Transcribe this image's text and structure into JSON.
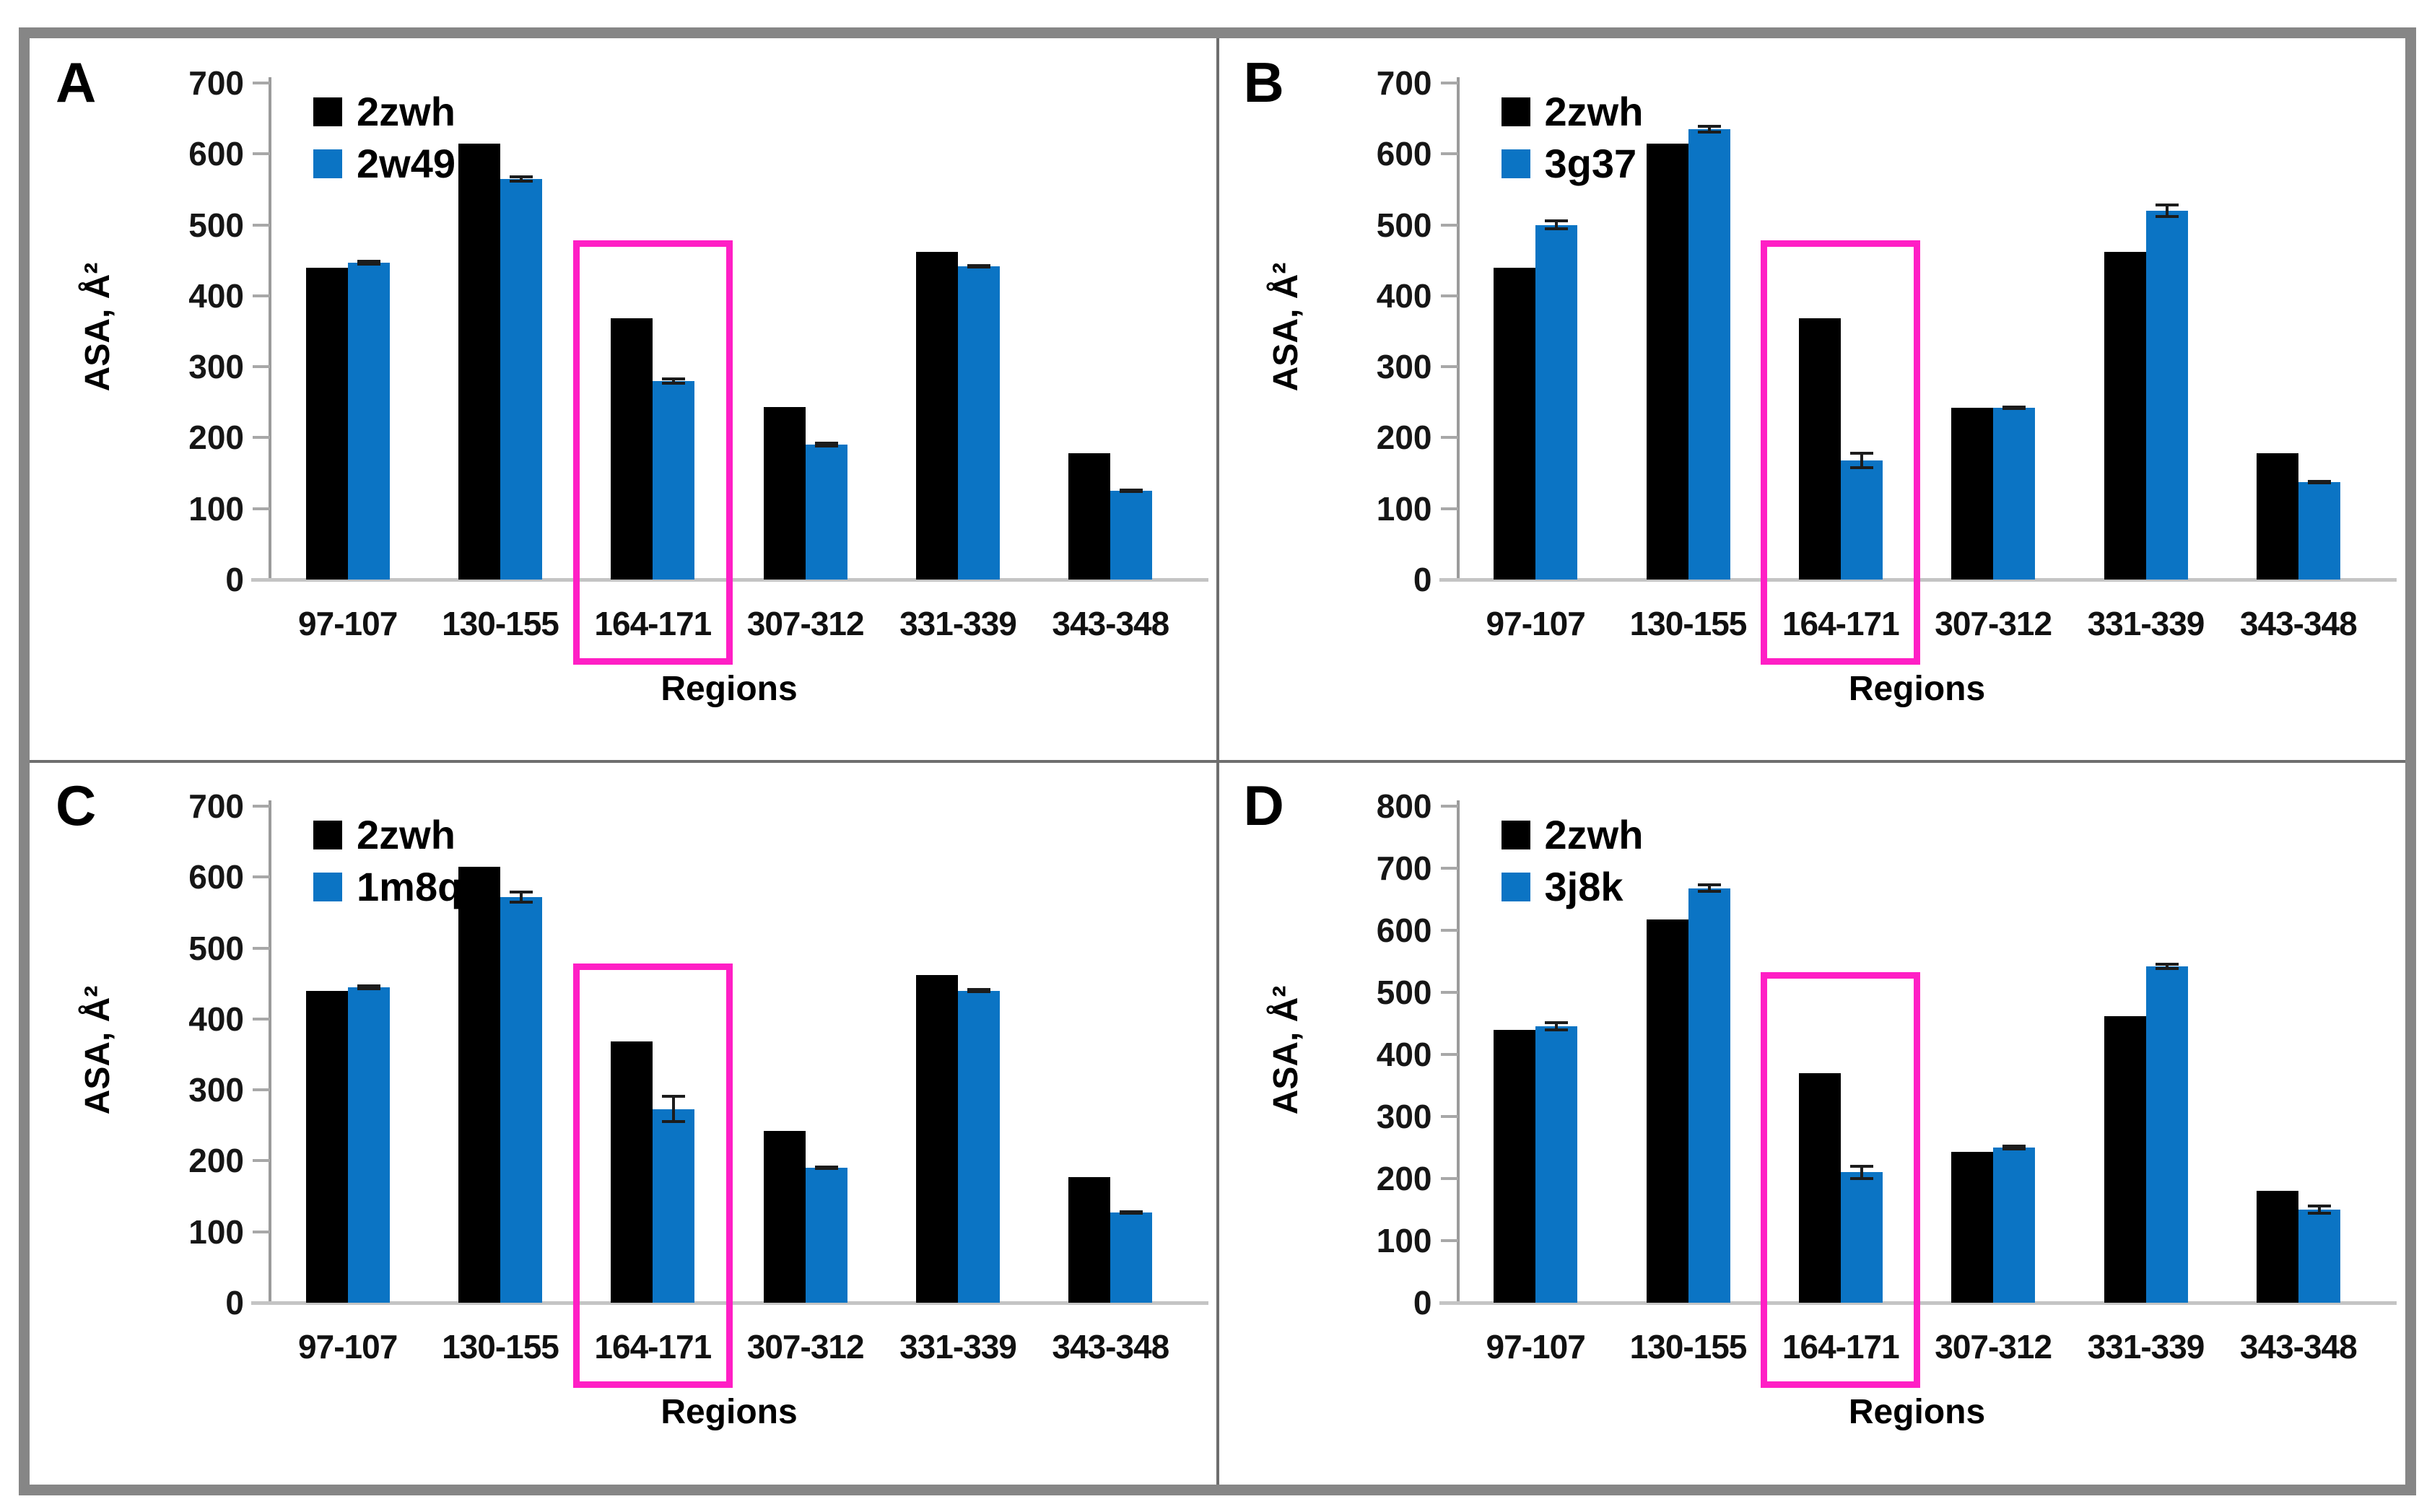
{
  "figure": {
    "frame_color": "#868686",
    "divider_color": "#6e6e6e",
    "background": "#ffffff"
  },
  "colors": {
    "series_black": "#000000",
    "series_blue": "#0b74c4",
    "highlight_pink": "#ff1fc5",
    "axis_gray": "#9b9b9b",
    "baseline_gray": "#c4c4c4",
    "error_bar": "#1c1c1c"
  },
  "chart_data": [
    {
      "type": "bar",
      "panel_letter": "A",
      "title": "",
      "xlabel": "Regions",
      "ylabel": "ASA, Å²",
      "ylim": [
        0,
        700
      ],
      "ytick_step": 100,
      "ytick_labels": [
        "0",
        "100",
        "200",
        "300",
        "400",
        "500",
        "600",
        "700"
      ],
      "grid": false,
      "legend_position": "top-left",
      "categories": [
        "97-107",
        "130-155",
        "164-171",
        "307-312",
        "331-339",
        "343-348"
      ],
      "series": [
        {
          "name": "2zwh",
          "color_key": "series_black",
          "values": [
            440,
            615,
            368,
            243,
            462,
            178
          ],
          "errors": [
            0,
            0,
            0,
            0,
            0,
            0
          ]
        },
        {
          "name": "2w49",
          "color_key": "series_blue",
          "values": [
            447,
            565,
            280,
            190,
            442,
            125
          ],
          "errors": [
            4,
            5,
            5,
            4,
            3,
            3
          ]
        }
      ],
      "highlighted_category": "164-171",
      "highlight_top_value": 478
    },
    {
      "type": "bar",
      "panel_letter": "B",
      "title": "",
      "xlabel": "Regions",
      "ylabel": "ASA, Å²",
      "ylim": [
        0,
        700
      ],
      "ytick_step": 100,
      "ytick_labels": [
        "0",
        "100",
        "200",
        "300",
        "400",
        "500",
        "600",
        "700"
      ],
      "grid": false,
      "legend_position": "top-left",
      "categories": [
        "97-107",
        "130-155",
        "164-171",
        "307-312",
        "331-339",
        "343-348"
      ],
      "series": [
        {
          "name": "2zwh",
          "color_key": "series_black",
          "values": [
            440,
            615,
            368,
            242,
            462,
            178
          ],
          "errors": [
            0,
            0,
            0,
            0,
            0,
            0
          ]
        },
        {
          "name": "3g37",
          "color_key": "series_blue",
          "values": [
            500,
            635,
            168,
            242,
            520,
            137
          ],
          "errors": [
            8,
            6,
            12,
            3,
            10,
            3
          ]
        }
      ],
      "highlighted_category": "164-171",
      "highlight_top_value": 478
    },
    {
      "type": "bar",
      "panel_letter": "C",
      "title": "",
      "xlabel": "Regions",
      "ylabel": "ASA, Å²",
      "ylim": [
        0,
        700
      ],
      "ytick_step": 100,
      "ytick_labels": [
        "0",
        "100",
        "200",
        "300",
        "400",
        "500",
        "600",
        "700"
      ],
      "grid": false,
      "legend_position": "top-left",
      "categories": [
        "97-107",
        "130-155",
        "164-171",
        "307-312",
        "331-339",
        "343-348"
      ],
      "series": [
        {
          "name": "2zwh",
          "color_key": "series_black",
          "values": [
            440,
            615,
            368,
            242,
            462,
            177
          ],
          "errors": [
            0,
            0,
            0,
            0,
            0,
            0
          ]
        },
        {
          "name": "1m8q",
          "color_key": "series_blue",
          "values": [
            445,
            572,
            273,
            190,
            440,
            127
          ],
          "errors": [
            4,
            9,
            20,
            3,
            4,
            3
          ]
        }
      ],
      "highlighted_category": "164-171",
      "highlight_top_value": 478
    },
    {
      "type": "bar",
      "panel_letter": "D",
      "title": "",
      "xlabel": "Regions",
      "ylabel": "ASA, Å²",
      "ylim": [
        0,
        800
      ],
      "ytick_step": 100,
      "ytick_labels": [
        "0",
        "100",
        "200",
        "300",
        "400",
        "500",
        "600",
        "700",
        "800"
      ],
      "grid": false,
      "legend_position": "top-left",
      "categories": [
        "97-107",
        "130-155",
        "164-171",
        "307-312",
        "331-339",
        "343-348"
      ],
      "series": [
        {
          "name": "2zwh",
          "color_key": "series_black",
          "values": [
            440,
            618,
            370,
            243,
            462,
            180
          ],
          "errors": [
            0,
            0,
            0,
            0,
            0,
            0
          ]
        },
        {
          "name": "3j8k",
          "color_key": "series_blue",
          "values": [
            445,
            668,
            210,
            250,
            542,
            150
          ],
          "errors": [
            8,
            8,
            12,
            5,
            6,
            8
          ]
        }
      ],
      "highlighted_category": "164-171",
      "highlight_top_value": 532
    }
  ]
}
